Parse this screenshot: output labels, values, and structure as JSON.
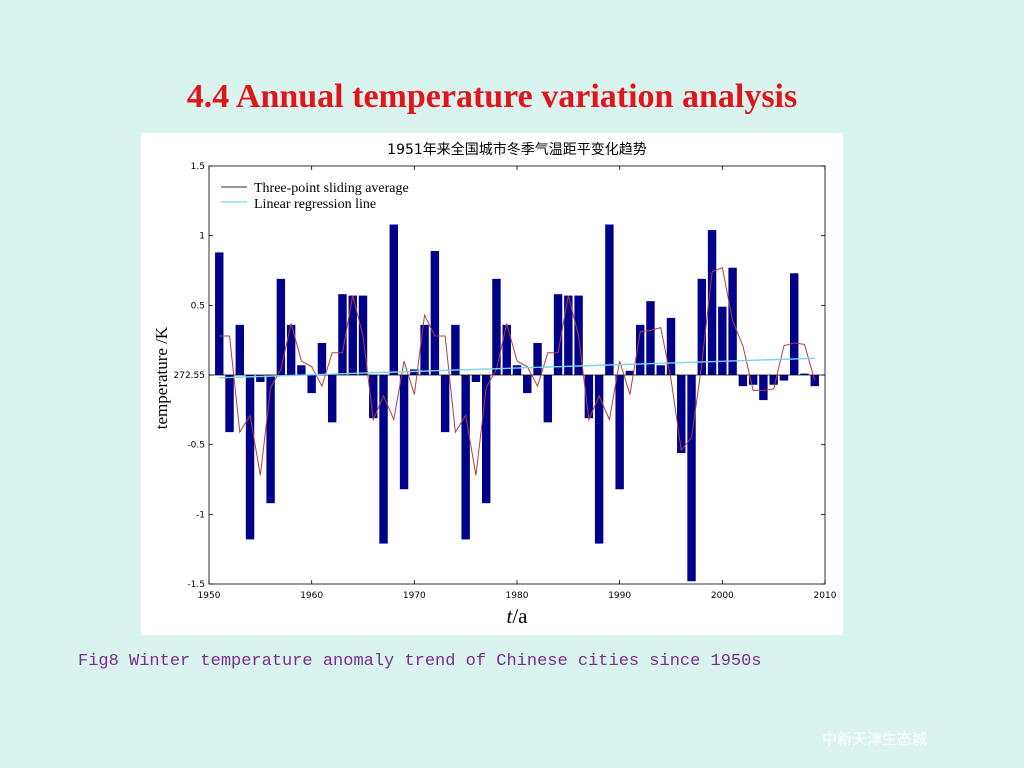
{
  "slide": {
    "title": "4.4 Annual temperature variation analysis",
    "caption": "Fig8 Winter temperature anomaly trend of Chinese cities since 1950s",
    "footer": "中新天津生态城"
  },
  "colors": {
    "title": "#e0141b",
    "caption": "#7a2d8f",
    "bars": "#00008b",
    "sliding": "#b04040",
    "regression": "#7ad4e8",
    "axis": "#000000"
  },
  "chart_data": {
    "type": "bar",
    "title": "1951年来全国城市冬季气温距平变化趋势",
    "xlabel_italic": "t",
    "xlabel_unit": "/a",
    "ylabel": "temperature  /K",
    "xlim": [
      1950,
      2010
    ],
    "ylim": [
      -1.5,
      1.5
    ],
    "x_ticks": [
      "1950",
      "1960",
      "1970",
      "1980",
      "1990",
      "2000",
      "2010"
    ],
    "y_ticks": [
      {
        "value": 1.5,
        "label": "1.5"
      },
      {
        "value": 1.0,
        "label": "1"
      },
      {
        "value": 0.5,
        "label": "0.5"
      },
      {
        "value": 0.0,
        "label": "272.55"
      },
      {
        "value": -0.5,
        "label": "-0.5"
      },
      {
        "value": -1.0,
        "label": "-1"
      },
      {
        "value": -1.5,
        "label": "-1.5"
      }
    ],
    "legend": {
      "placement": "top-left",
      "entries": [
        "Three-point sliding average",
        "Linear regression line"
      ]
    },
    "series": [
      {
        "type": "bar",
        "x": [
          1951,
          1952,
          1953,
          1954,
          1955,
          1956,
          1957,
          1958,
          1959,
          1960,
          1961,
          1962,
          1963,
          1964,
          1965,
          1966,
          1967,
          1968,
          1969,
          1970,
          1971,
          1972,
          1973,
          1974,
          1975,
          1976,
          1977,
          1978,
          1979,
          1980,
          1981,
          1982,
          1983,
          1984,
          1985,
          1986,
          1987,
          1988,
          1989,
          1990,
          1991,
          1992,
          1993,
          1994,
          1995,
          1996,
          1997,
          1998,
          1999,
          2000,
          2001,
          2002,
          2003,
          2004,
          2005,
          2006,
          2007,
          2008,
          2009
        ],
        "values": [
          0.88,
          -0.41,
          0.36,
          -1.18,
          -0.05,
          -0.92,
          0.69,
          0.36,
          0.07,
          -0.13,
          0.23,
          -0.34,
          0.58,
          0.57,
          0.57,
          -0.31,
          -1.21,
          1.08,
          -0.82,
          0.04,
          0.36,
          0.89,
          -0.41,
          0.36,
          -1.18,
          -0.05,
          -0.92,
          0.69,
          0.36,
          0.07,
          -0.13,
          0.23,
          -0.34,
          0.58,
          0.57,
          0.57,
          -0.31,
          -1.21,
          1.08,
          -0.82,
          0.03,
          0.36,
          0.53,
          0.07,
          0.41,
          -0.56,
          -1.48,
          0.69,
          1.04,
          0.49,
          0.77,
          -0.08,
          -0.07,
          -0.18,
          -0.07,
          -0.04,
          0.73,
          0.01,
          -0.08
        ]
      },
      {
        "type": "line",
        "name": "Three-point sliding average",
        "x": [
          1951,
          1952,
          1953,
          1954,
          1955,
          1956,
          1957,
          1958,
          1959,
          1960,
          1961,
          1962,
          1963,
          1964,
          1965,
          1966,
          1967,
          1968,
          1969,
          1970,
          1971,
          1972,
          1973,
          1974,
          1975,
          1976,
          1977,
          1978,
          1979,
          1980,
          1981,
          1982,
          1983,
          1984,
          1985,
          1986,
          1987,
          1988,
          1989,
          1990,
          1991,
          1992,
          1993,
          1994,
          1995,
          1996,
          1997,
          1998,
          1999,
          2000,
          2001,
          2002,
          2003,
          2004,
          2005,
          2006,
          2007,
          2008,
          2009
        ],
        "values": [
          0.28,
          0.28,
          -0.41,
          -0.29,
          -0.72,
          -0.09,
          0.04,
          0.37,
          0.1,
          0.06,
          -0.08,
          0.16,
          0.16,
          0.57,
          0.28,
          -0.32,
          -0.15,
          -0.32,
          0.1,
          -0.14,
          0.43,
          0.28,
          0.28,
          -0.41,
          -0.29,
          -0.72,
          -0.09,
          0.04,
          0.37,
          0.1,
          0.06,
          -0.08,
          0.16,
          0.16,
          0.57,
          0.28,
          -0.32,
          -0.15,
          -0.32,
          0.1,
          -0.14,
          0.31,
          0.32,
          0.34,
          -0.03,
          -0.54,
          -0.45,
          0.08,
          0.74,
          0.77,
          0.39,
          0.21,
          -0.11,
          -0.11,
          -0.1,
          0.21,
          0.23,
          0.22,
          -0.04
        ]
      },
      {
        "type": "line",
        "name": "Linear regression line",
        "x": [
          1951,
          2009
        ],
        "values": [
          -0.02,
          0.12
        ]
      }
    ]
  }
}
